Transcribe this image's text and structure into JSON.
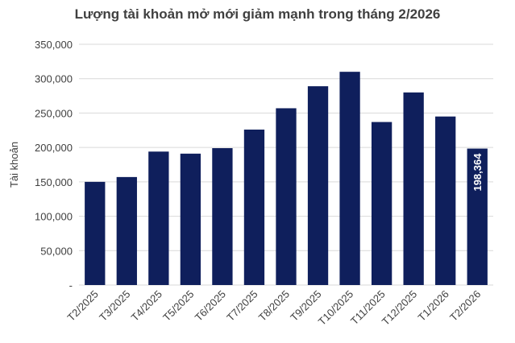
{
  "chart_data": {
    "type": "bar",
    "title": "Lượng tài khoản mở mới giảm mạnh trong tháng 2/2026",
    "ylabel": "Tài khoản",
    "xlabel": "",
    "categories": [
      "T2/2025",
      "T3/2025",
      "T4/2025",
      "T5/2025",
      "T6/2025",
      "T7/2025",
      "T8/2025",
      "T9/2025",
      "T10/2025",
      "T11/2025",
      "T12/2025",
      "T1/2026",
      "T2/2026"
    ],
    "values": [
      150000,
      157000,
      194000,
      191000,
      199000,
      226000,
      257000,
      289000,
      310000,
      237000,
      280000,
      245000,
      198364
    ],
    "ylim": [
      0,
      350000
    ],
    "yticks": [
      {
        "value": 0,
        "label": "-"
      },
      {
        "value": 50000,
        "label": "50,000"
      },
      {
        "value": 100000,
        "label": "100,000"
      },
      {
        "value": 150000,
        "label": "150,000"
      },
      {
        "value": 200000,
        "label": "200,000"
      },
      {
        "value": 250000,
        "label": "250,000"
      },
      {
        "value": 300000,
        "label": "300,000"
      },
      {
        "value": 350000,
        "label": "350,000"
      }
    ],
    "data_labels": [
      {
        "index": 12,
        "text": "198,364"
      }
    ],
    "bar_color": "#0f1f5c",
    "grid": true,
    "legend": "none"
  }
}
